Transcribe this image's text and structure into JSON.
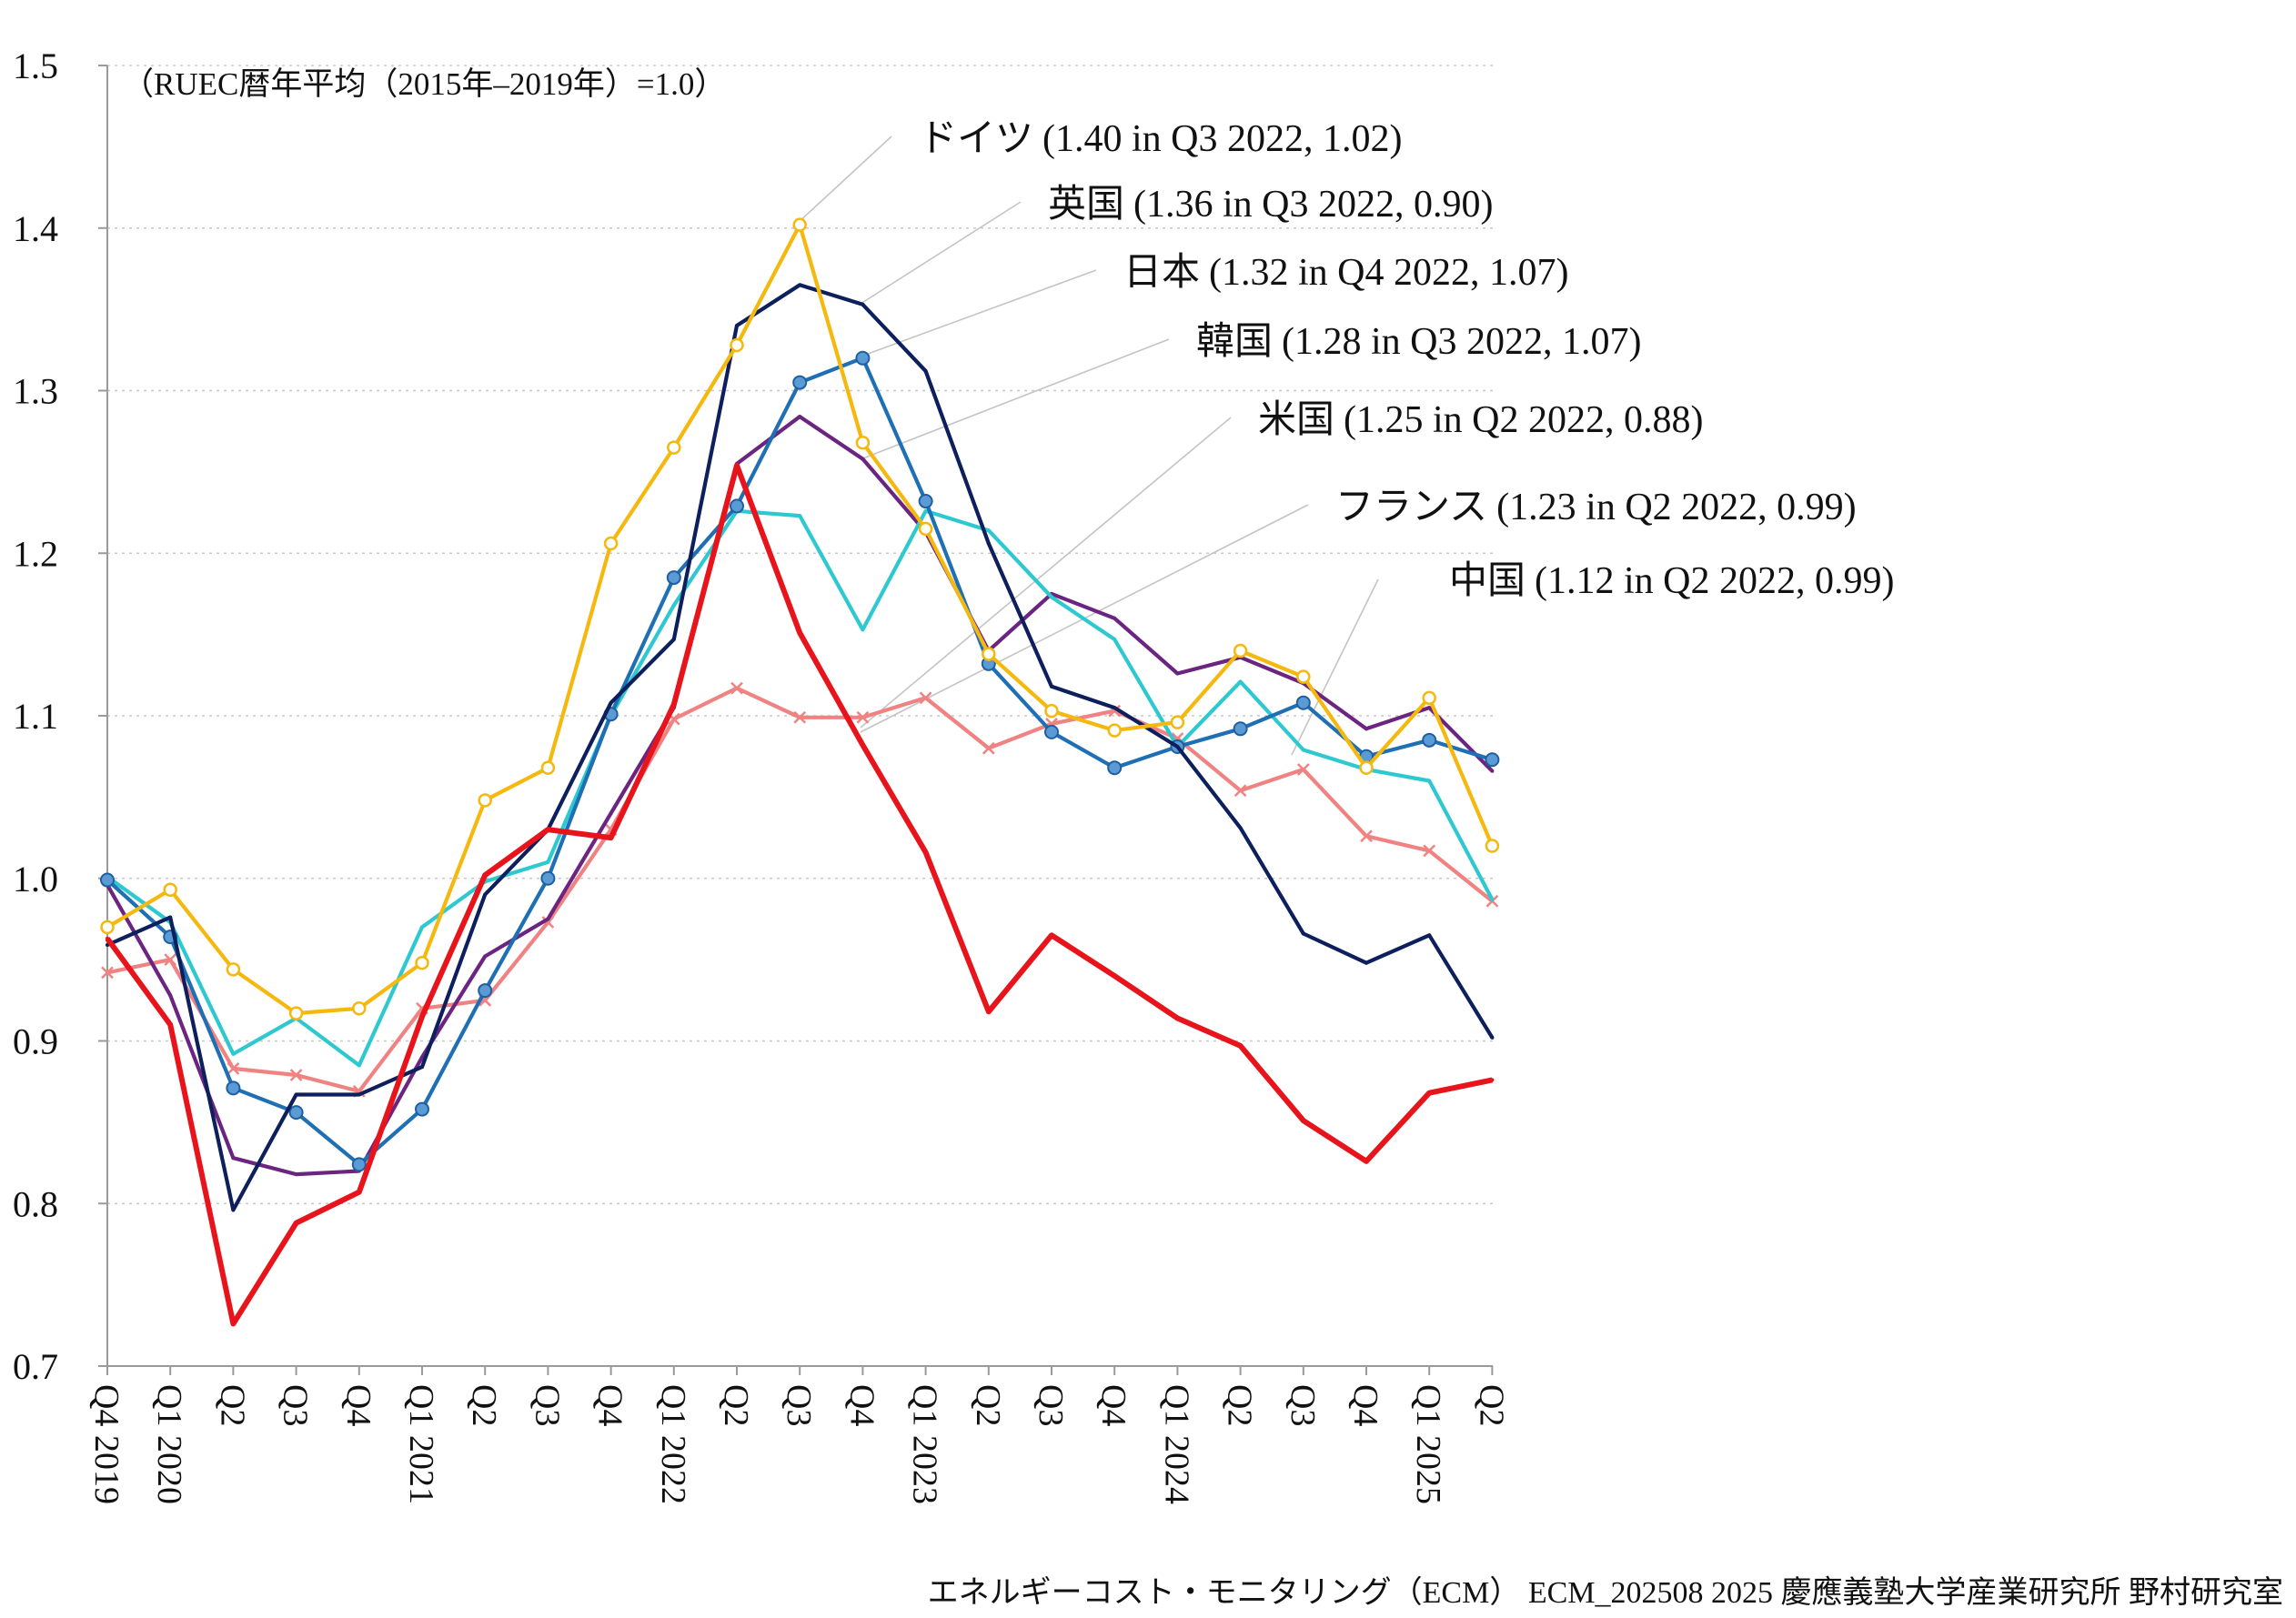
{
  "chart_data": {
    "type": "line",
    "note": "（RUEC暦年平均（2015年–2019年）=1.0）",
    "source": "エネルギーコスト・モニタリング（ECM） ECM_202508 2025 慶應義塾大学産業研究所 野村研究室",
    "ylim": [
      0.7,
      1.5
    ],
    "y_ticks": [
      "0.7",
      "0.8",
      "0.9",
      "1.0",
      "1.1",
      "1.2",
      "1.3",
      "1.4",
      "1.5"
    ],
    "x_ticks": [
      "Q4 2019",
      "Q1 2020",
      "Q2",
      "Q3",
      "Q4",
      "Q1 2021",
      "Q2",
      "Q3",
      "Q4",
      "Q1 2022",
      "Q2",
      "Q3",
      "Q4",
      "Q1 2023",
      "Q2",
      "Q3",
      "Q4",
      "Q1 2024",
      "Q2",
      "Q3",
      "Q4",
      "Q1 2025",
      "Q2"
    ],
    "series": [
      {
        "key": "germany",
        "name": "ドイツ",
        "legend": "(1.40 in Q3 2022, 1.02)",
        "color": "#f5b80f",
        "marker": "hollow",
        "values": [
          0.97,
          0.993,
          0.944,
          0.917,
          0.92,
          0.948,
          1.048,
          1.068,
          1.206,
          1.265,
          1.328,
          1.402,
          1.268,
          1.215,
          1.138,
          1.103,
          1.091,
          1.096,
          1.14,
          1.124,
          1.068,
          1.111,
          1.02
        ]
      },
      {
        "key": "uk",
        "name": "英国",
        "legend": "(1.36 in Q3 2022, 0.90)",
        "color": "#0d1f5c",
        "marker": "none",
        "values": [
          0.959,
          0.976,
          0.796,
          0.867,
          0.867,
          0.884,
          0.99,
          1.03,
          1.108,
          1.147,
          1.34,
          1.365,
          1.353,
          1.312,
          1.206,
          1.118,
          1.105,
          1.081,
          1.031,
          0.966,
          0.948,
          0.965,
          0.902
        ]
      },
      {
        "key": "japan",
        "name": "日本",
        "legend": "(1.32 in Q4 2022, 1.07)",
        "color": "#1f6fb5",
        "marker": "filled",
        "values": [
          0.999,
          0.964,
          0.871,
          0.856,
          0.824,
          0.858,
          0.931,
          1.0,
          1.101,
          1.185,
          1.229,
          1.305,
          1.32,
          1.232,
          1.132,
          1.09,
          1.068,
          1.081,
          1.092,
          1.108,
          1.075,
          1.085,
          1.073
        ]
      },
      {
        "key": "korea",
        "name": "韓国",
        "legend": "(1.28 in Q3 2022, 1.07)",
        "color": "#6b2580",
        "marker": "none",
        "values": [
          0.996,
          0.928,
          0.828,
          0.818,
          0.82,
          0.89,
          0.952,
          0.975,
          1.04,
          1.105,
          1.255,
          1.284,
          1.258,
          1.213,
          1.14,
          1.175,
          1.16,
          1.126,
          1.136,
          1.12,
          1.092,
          1.105,
          1.066
        ]
      },
      {
        "key": "usa",
        "name": "米国",
        "legend": "(1.25 in Q2 2022, 0.88)",
        "color": "#e8141b",
        "marker": "none",
        "values": [
          0.963,
          0.91,
          0.726,
          0.788,
          0.807,
          0.915,
          1.002,
          1.03,
          1.025,
          1.107,
          1.254,
          1.151,
          1.082,
          1.016,
          0.918,
          0.965,
          0.94,
          0.914,
          0.897,
          0.851,
          0.826,
          0.868,
          0.876
        ]
      },
      {
        "key": "france",
        "name": "フランス",
        "legend": "(1.23 in Q2 2022, 0.99)",
        "color": "#2ec9d0",
        "marker": "none",
        "values": [
          1.001,
          0.973,
          0.892,
          0.914,
          0.885,
          0.97,
          0.998,
          1.01,
          1.1,
          1.168,
          1.226,
          1.223,
          1.153,
          1.226,
          1.214,
          1.173,
          1.147,
          1.081,
          1.121,
          1.079,
          1.067,
          1.06,
          0.987
        ]
      },
      {
        "key": "china",
        "name": "中国",
        "legend": "(1.12 in Q2 2022, 0.99)",
        "color": "#f08282",
        "marker": "cross",
        "values": [
          0.942,
          0.95,
          0.883,
          0.879,
          0.869,
          0.92,
          0.925,
          0.973,
          1.03,
          1.098,
          1.117,
          1.099,
          1.099,
          1.111,
          1.08,
          1.095,
          1.103,
          1.086,
          1.054,
          1.067,
          1.026,
          1.017,
          0.986
        ]
      }
    ]
  }
}
